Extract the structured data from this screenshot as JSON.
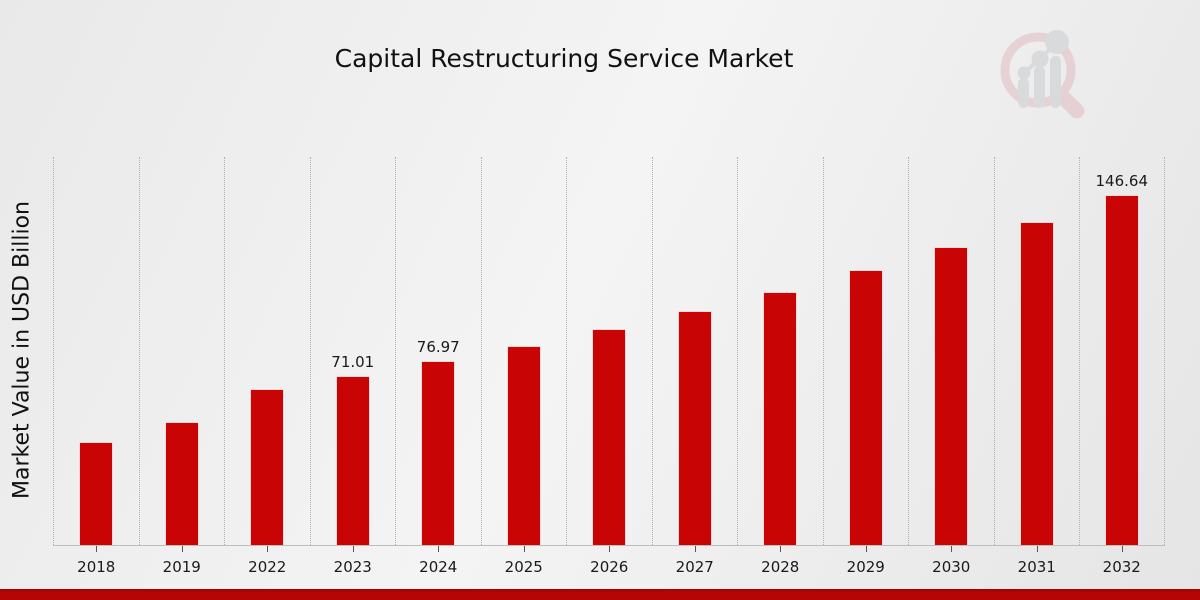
{
  "page": {
    "title": "Capital Restructuring Service Market"
  },
  "chart_data": {
    "type": "bar",
    "title": "Capital Restructuring Service Market",
    "xlabel": "",
    "ylabel": "Market Value in USD Billion",
    "categories": [
      "2018",
      "2019",
      "2022",
      "2023",
      "2024",
      "2025",
      "2026",
      "2027",
      "2028",
      "2029",
      "2030",
      "2031",
      "2032"
    ],
    "values": [
      43.3,
      51.7,
      65.5,
      71.01,
      76.97,
      83.43,
      90.43,
      98.02,
      106.25,
      115.16,
      124.82,
      135.29,
      146.64
    ],
    "bar_value_labels": [
      "",
      "",
      "",
      "71.01",
      "76.97",
      "",
      "",
      "",
      "",
      "",
      "",
      "",
      "146.64"
    ],
    "ylim": [
      0,
      162.6
    ],
    "grid": "vertical-dotted",
    "legend": "none"
  },
  "colors": {
    "bar": "#c90404",
    "bottom_strip": "#b50505",
    "gridline": "#b0b0b0",
    "title_text": "#111111",
    "logo_ring_pink": "#dba8ae",
    "logo_bars_gray": "#b9bcc2"
  },
  "branding": {
    "logo_name": "market-research-magnifier-logo"
  }
}
